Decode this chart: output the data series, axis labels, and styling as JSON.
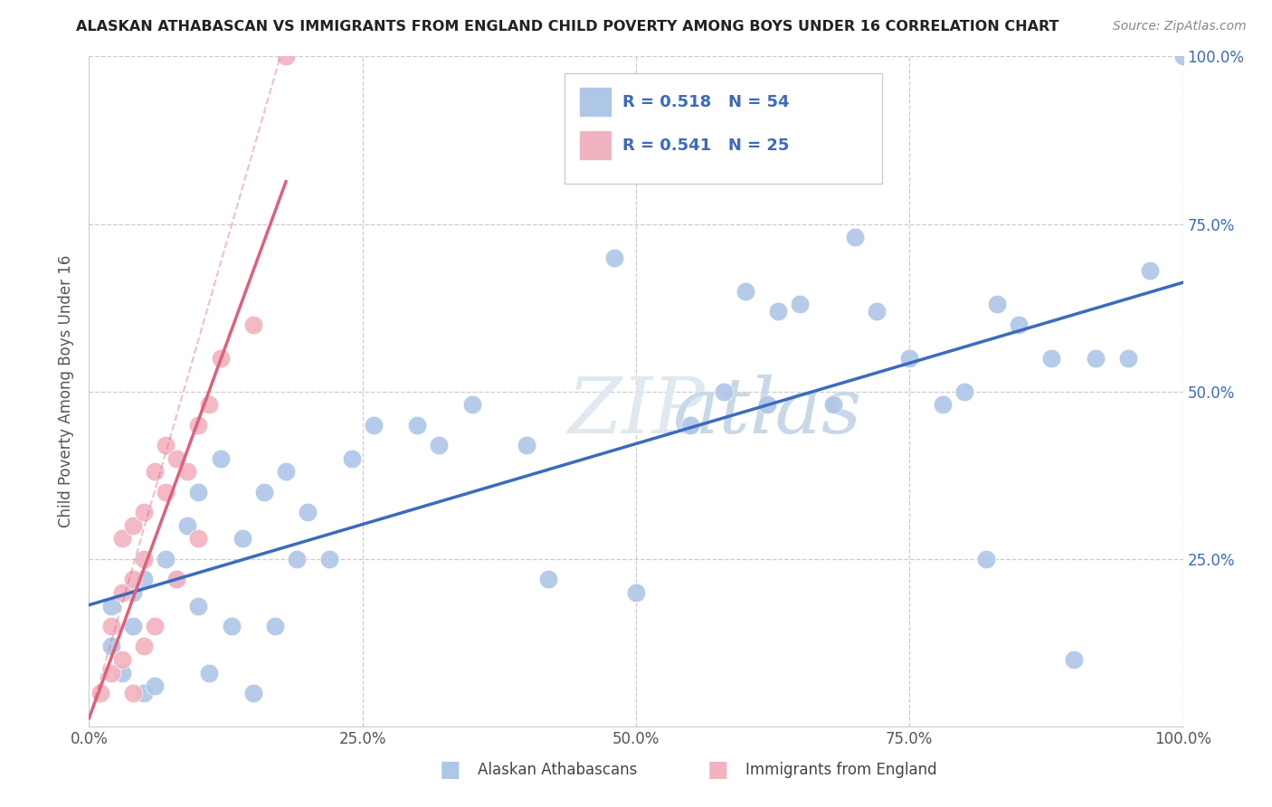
{
  "title": "ALASKAN ATHABASCAN VS IMMIGRANTS FROM ENGLAND CHILD POVERTY AMONG BOYS UNDER 16 CORRELATION CHART",
  "source": "Source: ZipAtlas.com",
  "ylabel": "Child Poverty Among Boys Under 16",
  "blue_R": "0.518",
  "blue_N": "54",
  "pink_R": "0.541",
  "pink_N": "25",
  "blue_color": "#aec6e8",
  "pink_color": "#f2b3c0",
  "blue_line_color": "#3a6bbf",
  "pink_line_color": "#e0607a",
  "pink_line_style": "solid",
  "watermark_text": "ZIPatlas",
  "legend_labels": [
    "Alaskan Athabascans",
    "Immigrants from England"
  ],
  "blue_x": [
    0.02,
    0.02,
    0.03,
    0.04,
    0.04,
    0.05,
    0.05,
    0.06,
    0.07,
    0.08,
    0.09,
    0.1,
    0.1,
    0.11,
    0.12,
    0.13,
    0.14,
    0.15,
    0.16,
    0.17,
    0.18,
    0.19,
    0.2,
    0.22,
    0.24,
    0.26,
    0.3,
    0.32,
    0.35,
    0.4,
    0.42,
    0.48,
    0.5,
    0.55,
    0.58,
    0.6,
    0.62,
    0.63,
    0.65,
    0.68,
    0.7,
    0.72,
    0.75,
    0.78,
    0.8,
    0.82,
    0.83,
    0.85,
    0.88,
    0.9,
    0.92,
    0.95,
    0.97,
    1.0
  ],
  "blue_y": [
    0.18,
    0.12,
    0.08,
    0.15,
    0.2,
    0.05,
    0.22,
    0.06,
    0.25,
    0.22,
    0.3,
    0.18,
    0.35,
    0.08,
    0.4,
    0.15,
    0.28,
    0.05,
    0.35,
    0.15,
    0.38,
    0.25,
    0.32,
    0.25,
    0.4,
    0.45,
    0.45,
    0.42,
    0.48,
    0.42,
    0.22,
    0.7,
    0.2,
    0.45,
    0.5,
    0.65,
    0.48,
    0.62,
    0.63,
    0.48,
    0.73,
    0.62,
    0.55,
    0.48,
    0.5,
    0.25,
    0.63,
    0.6,
    0.55,
    0.1,
    0.55,
    0.55,
    0.68,
    1.0
  ],
  "pink_x": [
    0.01,
    0.02,
    0.02,
    0.03,
    0.03,
    0.03,
    0.04,
    0.04,
    0.04,
    0.05,
    0.05,
    0.05,
    0.06,
    0.06,
    0.07,
    0.07,
    0.08,
    0.08,
    0.09,
    0.1,
    0.1,
    0.11,
    0.12,
    0.15,
    0.18
  ],
  "pink_y": [
    0.05,
    0.08,
    0.15,
    0.1,
    0.2,
    0.28,
    0.05,
    0.22,
    0.3,
    0.12,
    0.25,
    0.32,
    0.15,
    0.38,
    0.35,
    0.42,
    0.22,
    0.4,
    0.38,
    0.28,
    0.45,
    0.48,
    0.55,
    0.6,
    1.0
  ]
}
